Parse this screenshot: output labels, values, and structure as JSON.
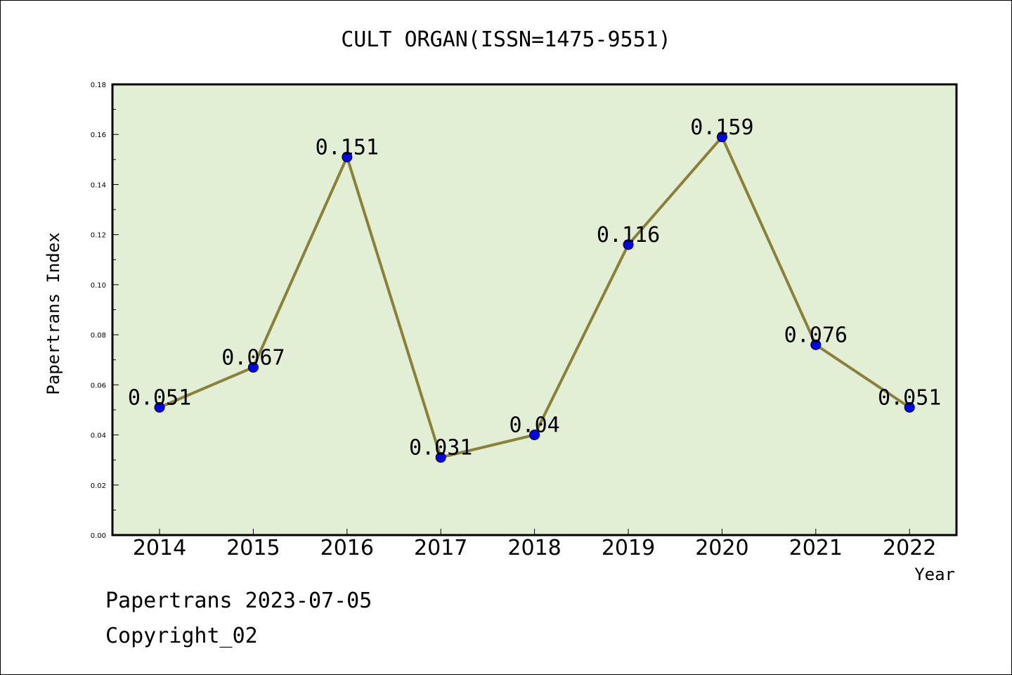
{
  "chart_data": {
    "type": "line",
    "title": "CULT ORGAN(ISSN=1475-9551)",
    "xlabel": "Year",
    "ylabel": "Papertrans Index",
    "categories": [
      "2014",
      "2015",
      "2016",
      "2017",
      "2018",
      "2019",
      "2020",
      "2021",
      "2022"
    ],
    "series": [
      {
        "values": [
          0.051,
          0.067,
          0.151,
          0.031,
          0.04,
          0.116,
          0.159,
          0.076,
          0.051
        ],
        "labels": [
          "0.051",
          "0.067",
          "0.151",
          "0.031",
          "0.04",
          "0.116",
          "0.159",
          "0.076",
          "0.051"
        ]
      }
    ],
    "ylim": [
      0,
      0.18
    ],
    "yticks": [
      "0.00",
      "0.02",
      "0.04",
      "0.06",
      "0.08",
      "0.10",
      "0.12",
      "0.14",
      "0.16",
      "0.18"
    ],
    "grid": false,
    "line_color": "#8b8038",
    "marker_color": "#0000ff",
    "plot_background": "#e2efd4"
  },
  "footer": {
    "date_line": "Papertrans 2023-07-05",
    "copyright": "Copyright_02"
  }
}
